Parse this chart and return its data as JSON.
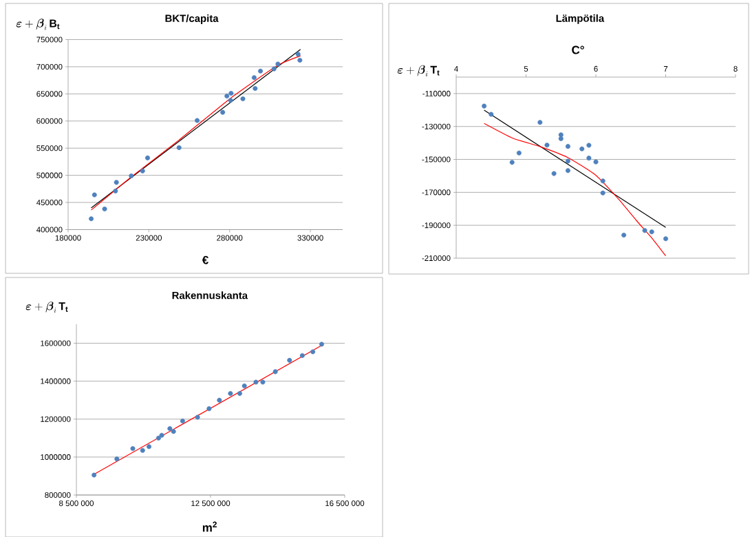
{
  "chart_data": [
    {
      "type": "scatter",
      "title": "BKT/capita",
      "xlabel": "€",
      "ylabel": "\\boldsymbol{\\varepsilon}+\\boldsymbol{\\beta}_{i}\\,\\mathbf{B}_{\\mathbf{t}}",
      "grid": "y",
      "xlim": [
        180000,
        350000
      ],
      "xticks": [
        180000,
        230000,
        280000,
        330000
      ],
      "ylim": [
        400000,
        750000
      ],
      "yticks": [
        400000,
        450000,
        500000,
        550000,
        600000,
        650000,
        700000,
        750000
      ],
      "series": [
        {
          "type": "scatter",
          "marker": "circle",
          "color": "#4f81bd",
          "x": [
            194300,
            196300,
            202600,
            209300,
            209900,
            219100,
            226100,
            229200,
            248700,
            259900,
            275700,
            278300,
            280600,
            280900,
            288200,
            295200,
            295800,
            299100,
            307500,
            309900,
            322400,
            323500
          ],
          "values": [
            420000,
            464000,
            438000,
            471000,
            487000,
            499000,
            508000,
            532000,
            551000,
            601000,
            616000,
            646000,
            638000,
            651000,
            641000,
            680000,
            660000,
            692000,
            696000,
            705000,
            723000,
            712000
          ]
        },
        {
          "type": "line",
          "marker": "none",
          "color": "#000000",
          "x": [
            194300,
            323900
          ],
          "values": [
            440000,
            732000
          ]
        },
        {
          "type": "line",
          "marker": "none",
          "color": "#ff0000",
          "x": [
            194300,
            219100,
            248700,
            280600,
            309500,
            323900
          ],
          "values": [
            436000,
            497000,
            565000,
            642000,
            702000,
            720000
          ]
        }
      ]
    },
    {
      "type": "scatter",
      "title": "Lämpötila",
      "xlabel": "C°",
      "ylabel": "\\boldsymbol{\\varepsilon}+\\boldsymbol{\\beta}_{i}\\,\\mathbf{T}_{\\mathbf{t}}",
      "grid": "y",
      "xlim": [
        4,
        8
      ],
      "xticks": [
        4,
        5,
        6,
        7,
        8
      ],
      "ylim": [
        -210000,
        -100000
      ],
      "yticks": [
        -210000,
        -190000,
        -170000,
        -150000,
        -130000,
        -110000
      ],
      "series": [
        {
          "type": "scatter",
          "marker": "circle",
          "color": "#4f81bd",
          "x": [
            4.4,
            4.5,
            5.2,
            4.9,
            4.8,
            5.3,
            5.5,
            5.5,
            5.6,
            5.4,
            5.6,
            5.6,
            5.8,
            5.9,
            5.9,
            6.0,
            6.1,
            6.1,
            6.4,
            6.7,
            6.8,
            7.0
          ],
          "values": [
            -117600,
            -122600,
            -127500,
            -146100,
            -151800,
            -141300,
            -135100,
            -137400,
            -142100,
            -158600,
            -151000,
            -156800,
            -143600,
            -141400,
            -149200,
            -151500,
            -163100,
            -170400,
            -196000,
            -193200,
            -194000,
            -198200
          ]
        },
        {
          "type": "line",
          "marker": "none",
          "color": "#000000",
          "x": [
            4.4,
            7.0
          ],
          "values": [
            -120100,
            -191300
          ]
        },
        {
          "type": "line",
          "marker": "none",
          "color": "#ff0000",
          "x": [
            4.4,
            4.81,
            5.2,
            5.6,
            5.99,
            6.32,
            6.58,
            6.81,
            7.0
          ],
          "values": [
            -128100,
            -137100,
            -142200,
            -148900,
            -159300,
            -173900,
            -187100,
            -198200,
            -208600
          ]
        }
      ]
    },
    {
      "type": "scatter",
      "title": "Rakennuskanta",
      "xlabel": "m$^{2}$",
      "ylabel": "\\boldsymbol{\\varepsilon}+\\boldsymbol{\\beta}_{i}\\,\\mathbf{T}_{\\mathbf{t}}",
      "grid": "y",
      "xlim": [
        8500000,
        16500000
      ],
      "xticks": [
        {
          "value": 8500000,
          "label": "8 500 000"
        },
        {
          "value": 12500000,
          "label": "12 500 000"
        },
        {
          "value": 16500000,
          "label": "16 500 000"
        }
      ],
      "ylim": [
        800000,
        1700000
      ],
      "yticks": [
        800000,
        1000000,
        1200000,
        1400000,
        1600000
      ],
      "series": [
        {
          "type": "scatter",
          "marker": "circle",
          "color": "#4f81bd",
          "x": [
            9026500,
            9706600,
            10181900,
            10474400,
            10664500,
            10949700,
            11044800,
            11286100,
            11395800,
            11666400,
            12112400,
            12456100,
            12763300,
            13092300,
            13370200,
            13509100,
            13852800,
            14057600,
            14430500,
            14854600,
            15234900,
            15549400,
            15812600
          ],
          "values": [
            905000,
            990000,
            1045000,
            1035000,
            1055000,
            1100000,
            1115000,
            1150000,
            1135000,
            1190000,
            1210000,
            1255000,
            1300000,
            1335000,
            1335000,
            1375000,
            1395000,
            1395000,
            1450000,
            1510000,
            1535000,
            1555000,
            1595000
          ]
        },
        {
          "type": "line",
          "marker": "none",
          "color": "#ff0000",
          "x": [
            9033800,
            15827400
          ],
          "values": [
            910000,
            1590000
          ]
        }
      ]
    }
  ]
}
